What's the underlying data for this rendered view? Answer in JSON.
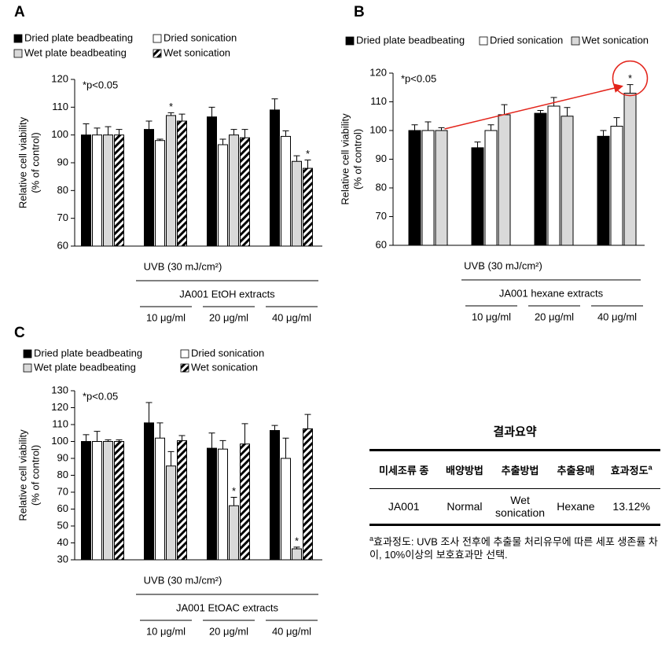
{
  "chart_data": [
    {
      "type": "bar",
      "panel": "A",
      "annotation": "*p<0.05",
      "ylabel": [
        "Relative cell viability",
        "(% of control)"
      ],
      "treatment": "UVB (30 mJ/cm²)",
      "extract": "JA001 EtOH extracts",
      "categories": [
        null,
        "10 μg/ml",
        "20 μg/ml",
        "40 μg/ml"
      ],
      "series": [
        {
          "name": "Dried plate beadbeating",
          "color": "#000000",
          "values": [
            100,
            102,
            106.5,
            109
          ],
          "errors": [
            4,
            3,
            3.5,
            4
          ],
          "significance": [
            null,
            null,
            null,
            null
          ]
        },
        {
          "name": "Dried sonication",
          "color": "#ffffff",
          "values": [
            100,
            98,
            96.5,
            99.5
          ],
          "errors": [
            2.5,
            0.5,
            2,
            2
          ],
          "significance": [
            null,
            null,
            null,
            null
          ]
        },
        {
          "name": "Wet plate beadbeating",
          "color": "#d9d9d9",
          "values": [
            100,
            107,
            100,
            90.5
          ],
          "errors": [
            3,
            1,
            2,
            2
          ],
          "significance": [
            null,
            "*",
            null,
            null
          ]
        },
        {
          "name": "Wet sonication",
          "color": "#ffffff",
          "hatch": true,
          "values": [
            100,
            105,
            99,
            88
          ],
          "errors": [
            2,
            2.5,
            3,
            3
          ],
          "significance": [
            null,
            null,
            null,
            "*"
          ]
        }
      ],
      "ylim": [
        60,
        120
      ],
      "yticks": [
        60,
        70,
        80,
        90,
        100,
        110,
        120
      ]
    },
    {
      "type": "bar",
      "panel": "B",
      "annotation": "*p<0.05",
      "ylabel": [
        "Relative cell viability",
        "(% of control)"
      ],
      "treatment": "UVB (30 mJ/cm²)",
      "extract": "JA001 hexane extracts",
      "categories": [
        null,
        "10 μg/ml",
        "20 μg/ml",
        "40 μg/ml"
      ],
      "series": [
        {
          "name": "Dried plate beadbeating",
          "color": "#000000",
          "values": [
            100,
            94,
            106,
            98
          ],
          "errors": [
            2,
            2,
            1,
            2
          ],
          "significance": [
            null,
            null,
            null,
            null
          ]
        },
        {
          "name": "Dried sonication",
          "color": "#ffffff",
          "values": [
            100,
            100,
            108.5,
            101.5
          ],
          "errors": [
            3,
            2,
            3,
            3
          ],
          "significance": [
            null,
            null,
            null,
            null
          ]
        },
        {
          "name": "Wet sonication",
          "color": "#d9d9d9",
          "values": [
            100,
            105.5,
            105,
            113
          ],
          "errors": [
            1,
            3.5,
            3,
            3
          ],
          "significance": [
            null,
            null,
            null,
            "*"
          ]
        }
      ],
      "ylim": [
        60,
        120
      ],
      "yticks": [
        60,
        70,
        80,
        90,
        100,
        110,
        120
      ]
    },
    {
      "type": "bar",
      "panel": "C",
      "annotation": "*p<0.05",
      "ylabel": [
        "Relative cell viability",
        "(% of control)"
      ],
      "treatment": "UVB (30 mJ/cm²)",
      "extract": "JA001 EtOAC extracts",
      "categories": [
        null,
        "10 μg/ml",
        "20 μg/ml",
        "40 μg/ml"
      ],
      "series": [
        {
          "name": "Dried plate beadbeating",
          "color": "#000000",
          "values": [
            100,
            111,
            96,
            106.5
          ],
          "errors": [
            4,
            12,
            9,
            3
          ],
          "significance": [
            null,
            null,
            null,
            null
          ]
        },
        {
          "name": "Dried sonication",
          "color": "#ffffff",
          "values": [
            100,
            102,
            95.5,
            90
          ],
          "errors": [
            6,
            9,
            5,
            12
          ],
          "significance": [
            null,
            null,
            null,
            null
          ]
        },
        {
          "name": "Wet plate beadbeating",
          "color": "#d9d9d9",
          "values": [
            100,
            85.5,
            62,
            36.5
          ],
          "errors": [
            1,
            8.5,
            5,
            1
          ],
          "significance": [
            null,
            null,
            "*",
            "*"
          ]
        },
        {
          "name": "Wet sonication",
          "color": "#ffffff",
          "hatch": true,
          "values": [
            100,
            100.5,
            98.5,
            107.5
          ],
          "errors": [
            1,
            3,
            12,
            8.5
          ],
          "significance": [
            null,
            null,
            null,
            null
          ]
        }
      ],
      "ylim": [
        30,
        130
      ],
      "yticks": [
        30,
        40,
        50,
        60,
        70,
        80,
        90,
        100,
        110,
        120,
        130
      ]
    }
  ],
  "table": {
    "title": "결과요약",
    "headers": [
      "미세조류 종",
      "배양방법",
      "추출방법",
      "추출용매",
      "효과정도"
    ],
    "header_note": "a",
    "rows": [
      [
        "JA001",
        "Normal",
        "Wet sonication",
        "Hexane",
        "13.12%"
      ]
    ],
    "footnote": {
      "marker": "a",
      "text": "효과정도: UVB 조사 전후에 추출물 처리유무에 따른 세포 생존률 차이, 10%이상의 보호효과만 선택."
    }
  }
}
